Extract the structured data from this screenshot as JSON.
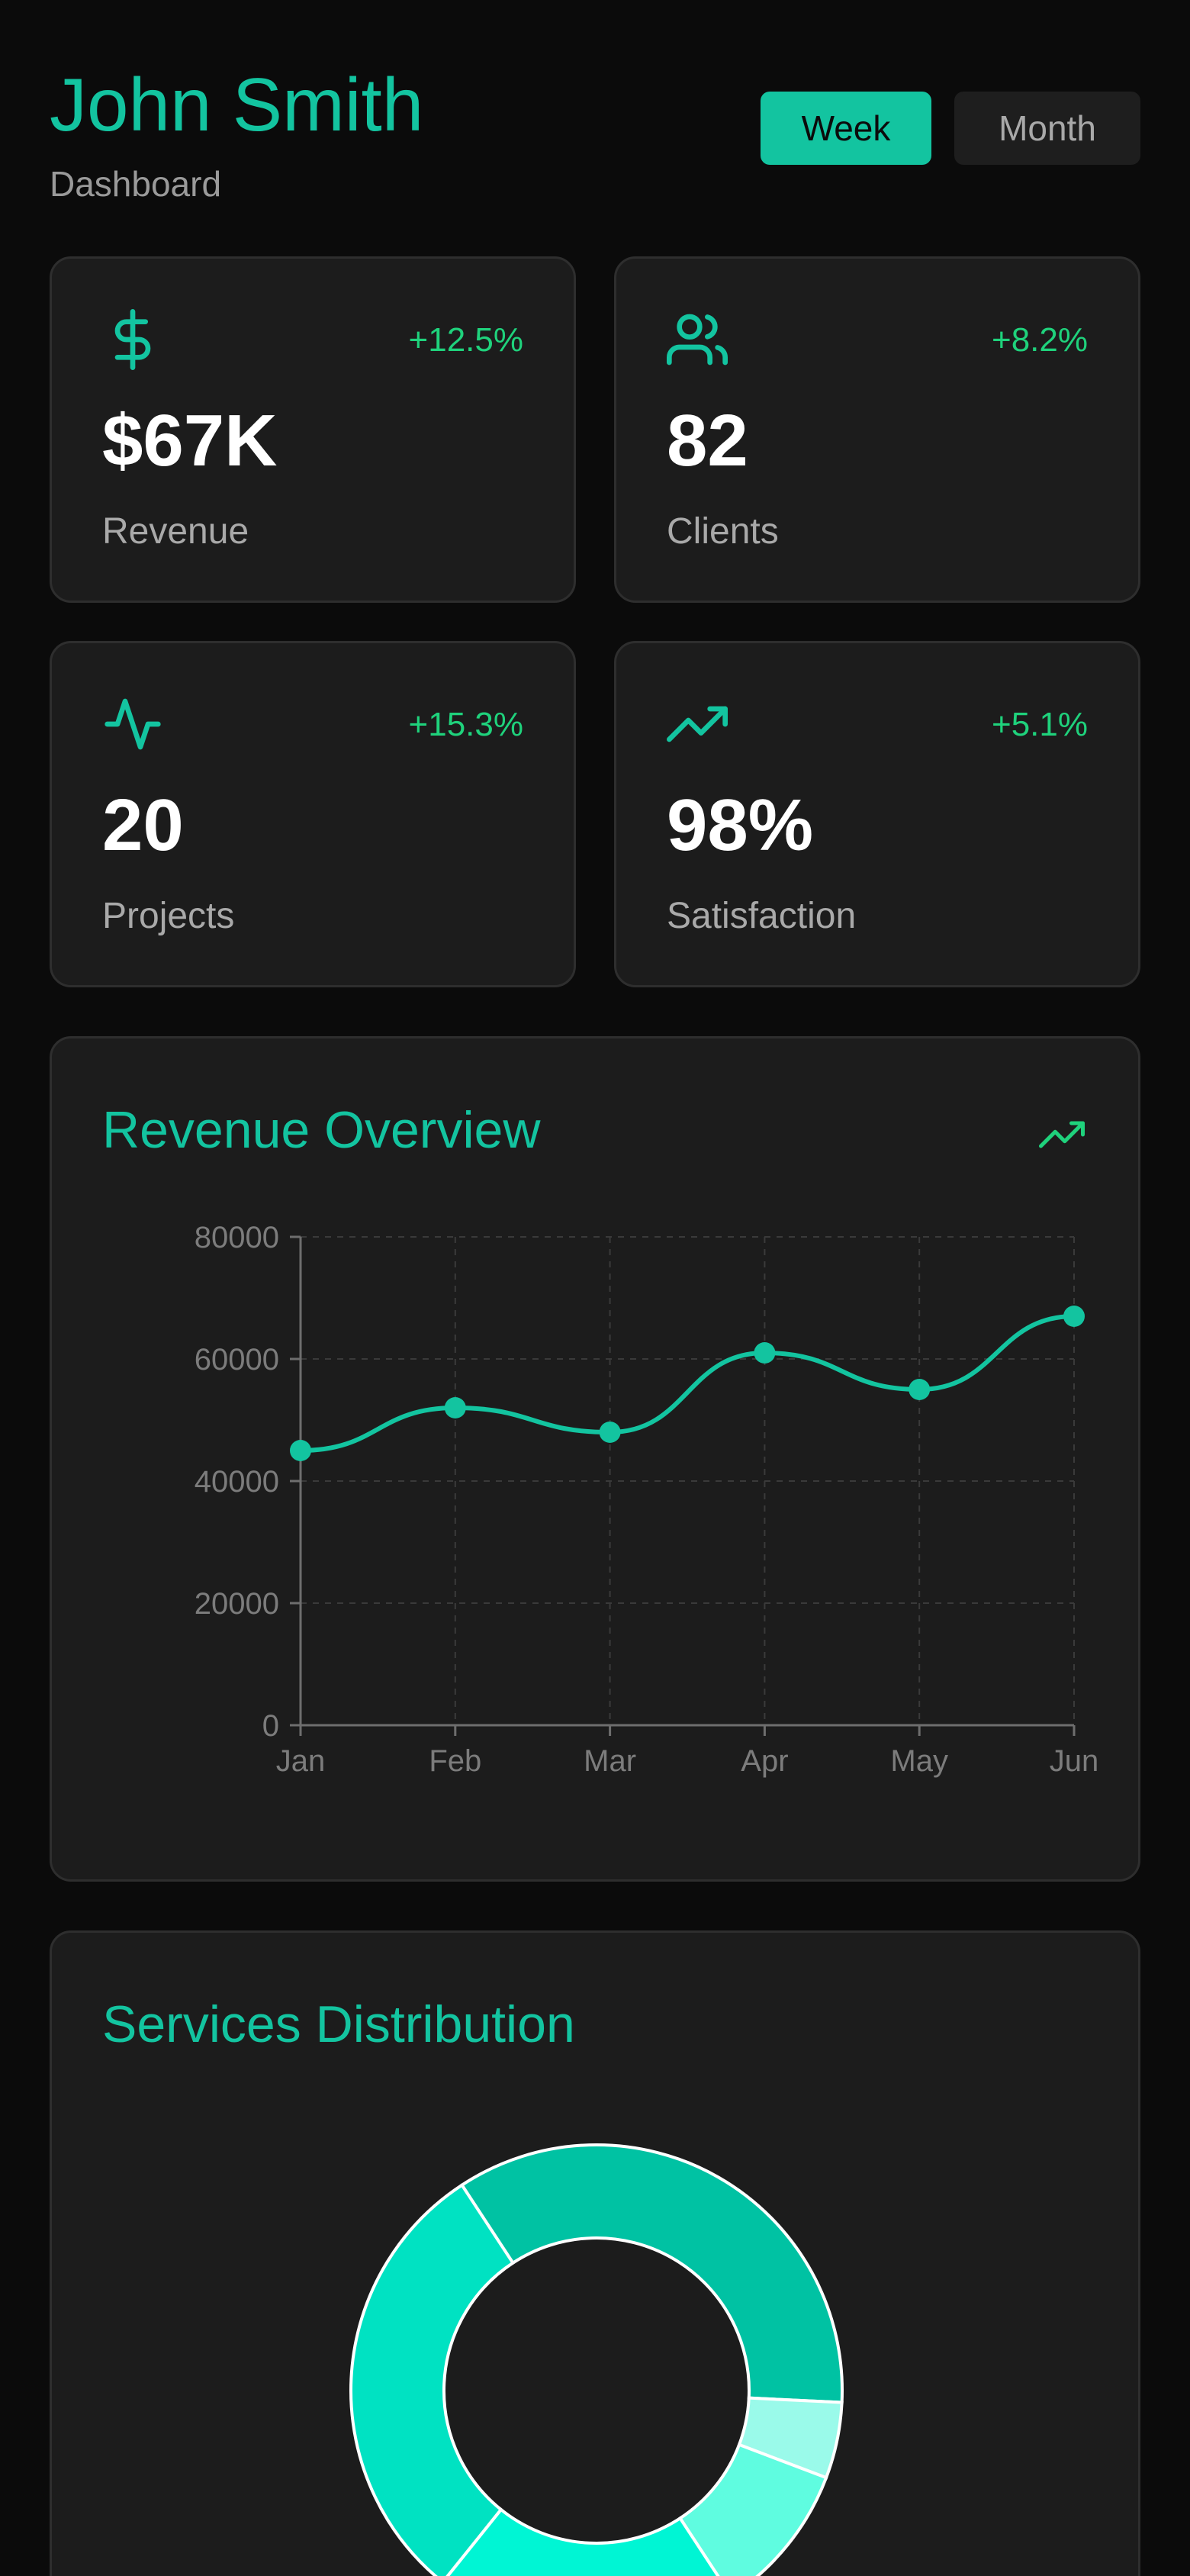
{
  "header": {
    "name": "John Smith",
    "subtitle": "Dashboard",
    "range_options": [
      "Week",
      "Month"
    ],
    "selected_range": "Week"
  },
  "stats": [
    {
      "icon": "dollar-icon",
      "change": "+12.5%",
      "value": "$67K",
      "label": "Revenue"
    },
    {
      "icon": "users-icon",
      "change": "+8.2%",
      "value": "82",
      "label": "Clients"
    },
    {
      "icon": "activity-icon",
      "change": "+15.3%",
      "value": "20",
      "label": "Projects"
    },
    {
      "icon": "trending-up-icon",
      "change": "+5.1%",
      "value": "98%",
      "label": "Satisfaction"
    }
  ],
  "colors": {
    "accent": "#13c4a0",
    "positive": "#1fd27c",
    "card_bg": "#1c1c1c",
    "page_bg": "#0b0b0b",
    "muted_text": "#a9a9a9"
  },
  "revenue_overview": {
    "title": "Revenue Overview",
    "icon": "trending-up-icon"
  },
  "services_distribution": {
    "title": "Services Distribution"
  },
  "chart_data": [
    {
      "type": "line",
      "title": "Revenue Overview",
      "categories": [
        "Jan",
        "Feb",
        "Mar",
        "Apr",
        "May",
        "Jun"
      ],
      "values": [
        45000,
        52000,
        48000,
        61000,
        55000,
        67000
      ],
      "y_ticks": [
        "0",
        "20000",
        "40000",
        "60000",
        "80000"
      ],
      "ylim": [
        0,
        80000
      ],
      "grid": true,
      "smooth": true,
      "color": "#13c4a0"
    },
    {
      "type": "pie",
      "title": "Services Distribution",
      "donut": true,
      "slices": [
        {
          "value": 35,
          "color": "#00c2a3"
        },
        {
          "value": 5,
          "color": "#9afaea"
        },
        {
          "value": 10,
          "color": "#5ffce0"
        },
        {
          "value": 20,
          "color": "#00f5d4"
        },
        {
          "value": 30,
          "color": "#00e2c2"
        }
      ]
    }
  ]
}
